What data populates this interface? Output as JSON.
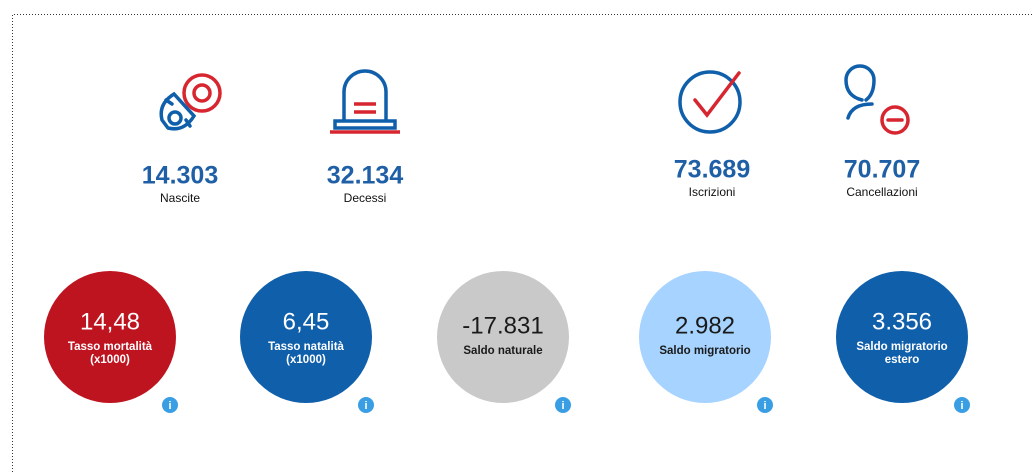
{
  "stats": [
    {
      "value": "14.303",
      "label": "Nascite"
    },
    {
      "value": "32.134",
      "label": "Decessi"
    },
    {
      "value": "73.689",
      "label": "Iscrizioni"
    },
    {
      "value": "70.707",
      "label": "Cancellazioni"
    }
  ],
  "indicators": [
    {
      "value": "14,48",
      "label_lines": [
        "Tasso mortalità",
        "(x1000)"
      ],
      "color": "#be1420",
      "text_color": "#ffffff"
    },
    {
      "value": "6,45",
      "label_lines": [
        "Tasso natalità",
        "(x1000)"
      ],
      "color": "#0f5fab",
      "text_color": "#ffffff"
    },
    {
      "value": "-17.831",
      "label_lines": [
        "Saldo naturale"
      ],
      "color": "#c9c9c9",
      "text_color": "#1a1a1a"
    },
    {
      "value": "2.982",
      "label_lines": [
        "Saldo migratorio"
      ],
      "color": "#a6d3ff",
      "text_color": "#1a1a1a"
    },
    {
      "value": "3.356",
      "label_lines": [
        "Saldo migratorio",
        "estero"
      ],
      "color": "#0f5fab",
      "text_color": "#ffffff"
    }
  ],
  "info_icon": "i"
}
